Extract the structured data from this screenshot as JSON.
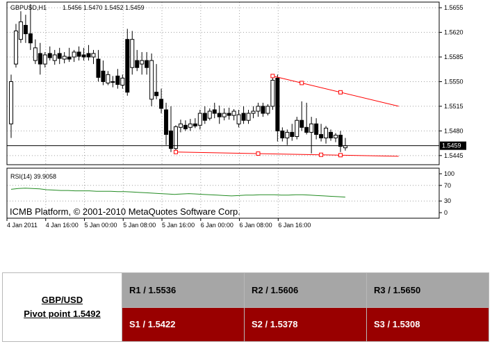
{
  "chart_data": {
    "type": "candlestick",
    "title": "GBPUSD,H1",
    "ohlc_header": "1.5456 1.5470 1.5452 1.5459",
    "current_price": 1.5459,
    "current_price_label": "1.5459",
    "price_axis": {
      "ticks": [
        "1.5655",
        "1.5620",
        "1.5585",
        "1.5550",
        "1.5515",
        "1.5480",
        "1.5445"
      ],
      "range": [
        1.5432,
        1.5663
      ]
    },
    "time_labels": [
      "4 Jan 2011",
      "4 Jan 16:00",
      "5 Jan 00:00",
      "5 Jan 08:00",
      "5 Jan 16:00",
      "6 Jan 00:00",
      "6 Jan 08:00",
      "6 Jan 16:00"
    ],
    "candles": [
      {
        "o": 1.549,
        "h": 1.556,
        "l": 1.547,
        "c": 1.555
      },
      {
        "o": 1.5575,
        "h": 1.5632,
        "l": 1.557,
        "c": 1.5622
      },
      {
        "o": 1.561,
        "h": 1.565,
        "l": 1.5605,
        "c": 1.5635
      },
      {
        "o": 1.563,
        "h": 1.5645,
        "l": 1.5605,
        "c": 1.5618
      },
      {
        "o": 1.5618,
        "h": 1.566,
        "l": 1.5595,
        "c": 1.5605
      },
      {
        "o": 1.558,
        "h": 1.561,
        "l": 1.5575,
        "c": 1.5598
      },
      {
        "o": 1.559,
        "h": 1.5605,
        "l": 1.556,
        "c": 1.5575
      },
      {
        "o": 1.5575,
        "h": 1.5592,
        "l": 1.557,
        "c": 1.5588
      },
      {
        "o": 1.559,
        "h": 1.56,
        "l": 1.558,
        "c": 1.5584
      },
      {
        "o": 1.558,
        "h": 1.5595,
        "l": 1.5574,
        "c": 1.5588
      },
      {
        "o": 1.559,
        "h": 1.5598,
        "l": 1.5575,
        "c": 1.5583
      },
      {
        "o": 1.5582,
        "h": 1.5592,
        "l": 1.5576,
        "c": 1.5586
      },
      {
        "o": 1.5585,
        "h": 1.5598,
        "l": 1.5578,
        "c": 1.5582
      },
      {
        "o": 1.5585,
        "h": 1.5595,
        "l": 1.5578,
        "c": 1.5592
      },
      {
        "o": 1.5592,
        "h": 1.56,
        "l": 1.558,
        "c": 1.5586
      },
      {
        "o": 1.5588,
        "h": 1.5598,
        "l": 1.558,
        "c": 1.5585
      },
      {
        "o": 1.559,
        "h": 1.5602,
        "l": 1.558,
        "c": 1.5585
      },
      {
        "o": 1.5585,
        "h": 1.5595,
        "l": 1.5575,
        "c": 1.559
      },
      {
        "o": 1.5582,
        "h": 1.5595,
        "l": 1.555,
        "c": 1.5556
      },
      {
        "o": 1.5565,
        "h": 1.558,
        "l": 1.5545,
        "c": 1.555
      },
      {
        "o": 1.5548,
        "h": 1.5565,
        "l": 1.5545,
        "c": 1.556
      },
      {
        "o": 1.555,
        "h": 1.5558,
        "l": 1.5542,
        "c": 1.555
      },
      {
        "o": 1.5558,
        "h": 1.5568,
        "l": 1.554,
        "c": 1.5546
      },
      {
        "o": 1.5545,
        "h": 1.556,
        "l": 1.554,
        "c": 1.5555
      },
      {
        "o": 1.561,
        "h": 1.5625,
        "l": 1.553,
        "c": 1.5535
      },
      {
        "o": 1.557,
        "h": 1.5622,
        "l": 1.556,
        "c": 1.561
      },
      {
        "o": 1.558,
        "h": 1.5595,
        "l": 1.5565,
        "c": 1.557
      },
      {
        "o": 1.5575,
        "h": 1.5592,
        "l": 1.556,
        "c": 1.558
      },
      {
        "o": 1.558,
        "h": 1.5592,
        "l": 1.556,
        "c": 1.557
      },
      {
        "o": 1.5525,
        "h": 1.559,
        "l": 1.5515,
        "c": 1.558
      },
      {
        "o": 1.5535,
        "h": 1.5575,
        "l": 1.5525,
        "c": 1.553
      },
      {
        "o": 1.5525,
        "h": 1.554,
        "l": 1.5505,
        "c": 1.5512
      },
      {
        "o": 1.551,
        "h": 1.552,
        "l": 1.546,
        "c": 1.5475
      },
      {
        "o": 1.548,
        "h": 1.5515,
        "l": 1.545,
        "c": 1.5455
      },
      {
        "o": 1.5455,
        "h": 1.5488,
        "l": 1.545,
        "c": 1.5486
      },
      {
        "o": 1.5485,
        "h": 1.5496,
        "l": 1.5478,
        "c": 1.549
      },
      {
        "o": 1.5488,
        "h": 1.5495,
        "l": 1.548,
        "c": 1.5483
      },
      {
        "o": 1.5485,
        "h": 1.5497,
        "l": 1.548,
        "c": 1.549
      },
      {
        "o": 1.549,
        "h": 1.5498,
        "l": 1.5484,
        "c": 1.5487
      },
      {
        "o": 1.5488,
        "h": 1.551,
        "l": 1.5482,
        "c": 1.5505
      },
      {
        "o": 1.5505,
        "h": 1.5515,
        "l": 1.549,
        "c": 1.5495
      },
      {
        "o": 1.5498,
        "h": 1.5512,
        "l": 1.5495,
        "c": 1.5508
      },
      {
        "o": 1.551,
        "h": 1.552,
        "l": 1.5498,
        "c": 1.5505
      },
      {
        "o": 1.5505,
        "h": 1.5516,
        "l": 1.549,
        "c": 1.55
      },
      {
        "o": 1.55,
        "h": 1.5512,
        "l": 1.5495,
        "c": 1.5505
      },
      {
        "o": 1.5505,
        "h": 1.5513,
        "l": 1.5496,
        "c": 1.5502
      },
      {
        "o": 1.5502,
        "h": 1.5511,
        "l": 1.5495,
        "c": 1.5508
      },
      {
        "o": 1.549,
        "h": 1.551,
        "l": 1.5485,
        "c": 1.5503
      },
      {
        "o": 1.5505,
        "h": 1.5515,
        "l": 1.549,
        "c": 1.5495
      },
      {
        "o": 1.5495,
        "h": 1.551,
        "l": 1.549,
        "c": 1.5505
      },
      {
        "o": 1.5505,
        "h": 1.5515,
        "l": 1.5498,
        "c": 1.5508
      },
      {
        "o": 1.5508,
        "h": 1.552,
        "l": 1.55,
        "c": 1.5515
      },
      {
        "o": 1.5515,
        "h": 1.552,
        "l": 1.55,
        "c": 1.5505
      },
      {
        "o": 1.5505,
        "h": 1.5518,
        "l": 1.5502,
        "c": 1.5515
      },
      {
        "o": 1.5515,
        "h": 1.5558,
        "l": 1.551,
        "c": 1.5552
      },
      {
        "o": 1.5555,
        "h": 1.556,
        "l": 1.5465,
        "c": 1.548
      },
      {
        "o": 1.548,
        "h": 1.5485,
        "l": 1.5465,
        "c": 1.547
      },
      {
        "o": 1.547,
        "h": 1.5482,
        "l": 1.546,
        "c": 1.5478
      },
      {
        "o": 1.5478,
        "h": 1.549,
        "l": 1.5466,
        "c": 1.5472
      },
      {
        "o": 1.5472,
        "h": 1.55,
        "l": 1.5468,
        "c": 1.5495
      },
      {
        "o": 1.5495,
        "h": 1.5522,
        "l": 1.548,
        "c": 1.5485
      },
      {
        "o": 1.5485,
        "h": 1.552,
        "l": 1.5475,
        "c": 1.5478
      },
      {
        "o": 1.5478,
        "h": 1.55,
        "l": 1.5448,
        "c": 1.549
      },
      {
        "o": 1.549,
        "h": 1.5498,
        "l": 1.5468,
        "c": 1.5475
      },
      {
        "o": 1.5475,
        "h": 1.549,
        "l": 1.5465,
        "c": 1.547
      },
      {
        "o": 1.547,
        "h": 1.5487,
        "l": 1.5462,
        "c": 1.5484
      },
      {
        "o": 1.5478,
        "h": 1.5482,
        "l": 1.5466,
        "c": 1.547
      },
      {
        "o": 1.547,
        "h": 1.5477,
        "l": 1.5464,
        "c": 1.5474
      },
      {
        "o": 1.5474,
        "h": 1.548,
        "l": 1.545,
        "c": 1.5458
      },
      {
        "o": 1.5456,
        "h": 1.547,
        "l": 1.5452,
        "c": 1.5459
      }
    ],
    "trendlines": [
      {
        "name": "resistance",
        "x0": 54,
        "y0": 1.5558,
        "x1": 80,
        "y1": 1.5515,
        "markers": [
          54,
          60,
          68
        ]
      },
      {
        "name": "support",
        "x0": 34,
        "y0": 1.545,
        "x1": 80,
        "y1": 1.5444,
        "markers": [
          34,
          51,
          64,
          68
        ]
      }
    ],
    "indicator": {
      "label": "RSI(14) 39.9058",
      "ticks": [
        "100",
        "70",
        "30",
        "0"
      ],
      "values": [
        60,
        62,
        63,
        62,
        61,
        59,
        58,
        57,
        57,
        56,
        56,
        56,
        55,
        55,
        55,
        54,
        54,
        53,
        52,
        51,
        50,
        49,
        48,
        47,
        48,
        49,
        48,
        47,
        46,
        45,
        44,
        43,
        44,
        45,
        45,
        46,
        46,
        46,
        45,
        45,
        46,
        46,
        45,
        44,
        43,
        42,
        41,
        40
      ]
    },
    "watermark": "ICMB Platform, © 2001-2010 MetaQuotes Software Corp."
  },
  "pivot_table": {
    "pair": "GBP/USD",
    "pivot": "Pivot point 1.5492",
    "r1": "R1 / 1.5536",
    "r2": "R2 / 1.5606",
    "r3": "R3 / 1.5650",
    "s1": "S1 / 1.5422",
    "s2": "S2 / 1.5378",
    "s3": "S3 / 1.5308"
  },
  "colors": {
    "resistance_row": "#a6a6a6",
    "support_row": "#990000",
    "rsi_line": "#228b22",
    "trendline": "#ff0000"
  }
}
